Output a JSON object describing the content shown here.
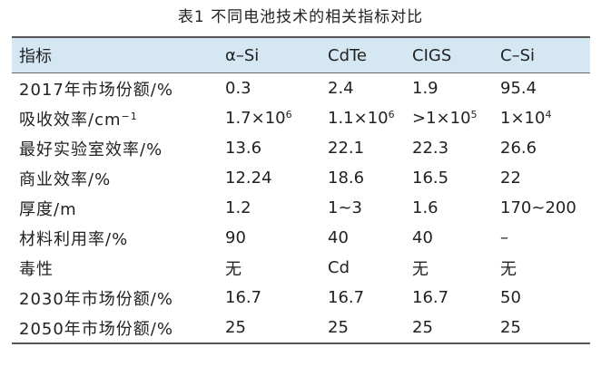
{
  "caption": "表1  不同电池技术的相关指标对比",
  "header": [
    "指标",
    "α–Si",
    "CdTe",
    "CIGS",
    "C–Si"
  ],
  "rows": [
    {
      "metric": "2017年市场份额/%",
      "cells": [
        {
          "base": "0.3"
        },
        {
          "base": "2.4"
        },
        {
          "base": "1.9"
        },
        {
          "base": "95.4"
        }
      ]
    },
    {
      "metric": "吸收效率/cm",
      "metric_sup": "−1",
      "cells": [
        {
          "base": "1.7×10",
          "sup": "6"
        },
        {
          "base": "1.1×10",
          "sup": "6"
        },
        {
          "base": ">1×10",
          "sup": "5"
        },
        {
          "base": "1×10",
          "sup": "4"
        }
      ]
    },
    {
      "metric": "最好实验室效率/%",
      "cells": [
        {
          "base": "13.6"
        },
        {
          "base": "22.1"
        },
        {
          "base": "22.3"
        },
        {
          "base": "26.6"
        }
      ]
    },
    {
      "metric": "商业效率/%",
      "cells": [
        {
          "base": "12.24"
        },
        {
          "base": "18.6"
        },
        {
          "base": "16.5"
        },
        {
          "base": "22"
        }
      ]
    },
    {
      "metric": "厚度/m",
      "cells": [
        {
          "base": "1.2"
        },
        {
          "base": "1~3"
        },
        {
          "base": "1.6"
        },
        {
          "base": "170~200"
        }
      ]
    },
    {
      "metric": "材料利用率/%",
      "cells": [
        {
          "base": "90"
        },
        {
          "base": "40"
        },
        {
          "base": "40"
        },
        {
          "base": "–"
        }
      ]
    },
    {
      "metric": "毒性",
      "cells": [
        {
          "base": "无"
        },
        {
          "base": "Cd"
        },
        {
          "base": "无"
        },
        {
          "base": "无"
        }
      ]
    },
    {
      "metric": "2030年市场份额/%",
      "cells": [
        {
          "base": "16.7"
        },
        {
          "base": "16.7"
        },
        {
          "base": "16.7"
        },
        {
          "base": "50"
        }
      ]
    },
    {
      "metric": "2050年市场份额/%",
      "cells": [
        {
          "base": "25"
        },
        {
          "base": "25"
        },
        {
          "base": "25"
        },
        {
          "base": "25"
        }
      ]
    }
  ],
  "colors": {
    "header_bg": "#d5e7f3",
    "rule": "#555555",
    "text": "#222222"
  }
}
